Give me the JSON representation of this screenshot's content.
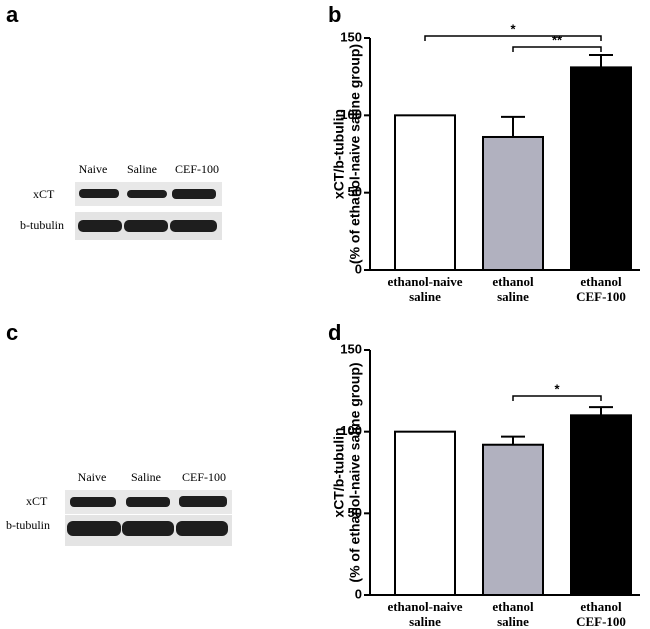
{
  "panel_labels": [
    "a",
    "b",
    "c",
    "d"
  ],
  "blots": [
    {
      "lanes": [
        "Naive",
        "Saline",
        "CEF-100"
      ],
      "rows": [
        "xCT",
        "b-tubulin"
      ]
    },
    {
      "lanes": [
        "Naive",
        "Saline",
        "CEF-100"
      ],
      "rows": [
        "xCT",
        "b-tubulin"
      ]
    }
  ],
  "chart_data": [
    {
      "type": "bar",
      "ylabel": [
        "xCT/b-tubulin",
        "(% of ethanol-naive saline group)"
      ],
      "categories": [
        [
          "ethanol-naive",
          "saline"
        ],
        [
          "ethanol",
          "saline"
        ],
        [
          "ethanol",
          "CEF-100"
        ]
      ],
      "values": [
        100,
        86,
        131
      ],
      "errors": [
        null,
        13,
        8
      ],
      "colors": [
        "#ffffff",
        "#b1b1bf",
        "#000000"
      ],
      "ylim": [
        0,
        150
      ],
      "yticks": [
        0,
        50,
        100,
        150
      ],
      "annotations": [
        {
          "text": "*",
          "from": 0,
          "to": 2
        },
        {
          "text": "**",
          "from": 1,
          "to": 2
        }
      ]
    },
    {
      "type": "bar",
      "ylabel": [
        "xCT/b-tubulin",
        "(% of ethanol-naive saline group)"
      ],
      "categories": [
        [
          "ethanol-naive",
          "saline"
        ],
        [
          "ethanol",
          "saline"
        ],
        [
          "ethanol",
          "CEF-100"
        ]
      ],
      "values": [
        100,
        92,
        110
      ],
      "errors": [
        null,
        5,
        5
      ],
      "colors": [
        "#ffffff",
        "#b1b1bf",
        "#000000"
      ],
      "ylim": [
        0,
        150
      ],
      "yticks": [
        0,
        50,
        100,
        150
      ],
      "annotations": [
        {
          "text": "*",
          "from": 1,
          "to": 2
        }
      ]
    }
  ]
}
